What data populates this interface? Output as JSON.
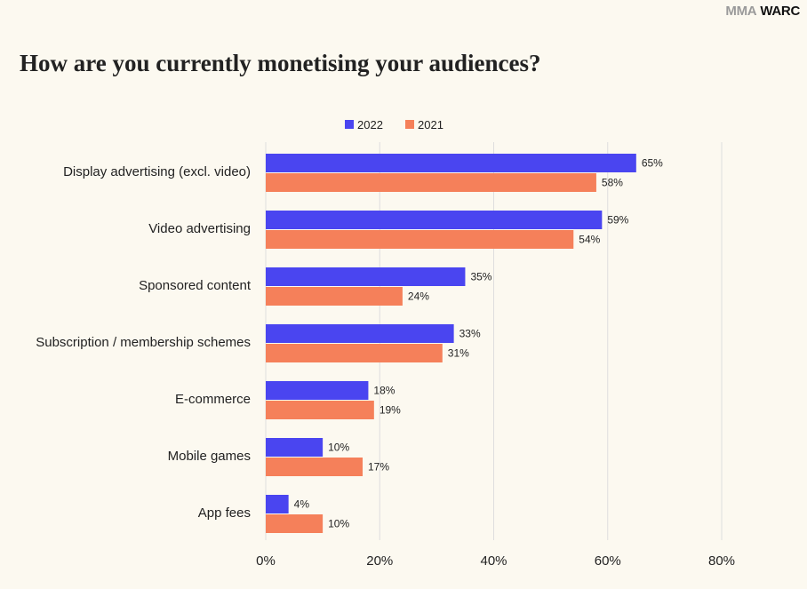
{
  "brand": {
    "logo_left": "MMA",
    "logo_right": "WARC"
  },
  "chart_data": {
    "type": "bar",
    "orientation": "horizontal",
    "title": "How are you currently monetising your audiences?",
    "categories": [
      "Display advertising (excl. video)",
      "Video advertising",
      "Sponsored content",
      "Subscription / membership schemes",
      "E-commerce",
      "Mobile games",
      "App fees"
    ],
    "series": [
      {
        "name": "2022",
        "color": "#4a45f0",
        "values": [
          65,
          59,
          35,
          33,
          18,
          10,
          4
        ]
      },
      {
        "name": "2021",
        "color": "#f5805a",
        "values": [
          58,
          54,
          24,
          31,
          19,
          17,
          10
        ]
      }
    ],
    "value_suffix": "%",
    "xlim": [
      0,
      80
    ],
    "xticks": [
      0,
      20,
      40,
      60,
      80
    ],
    "xtick_labels": [
      "0%",
      "20%",
      "40%",
      "60%",
      "80%"
    ],
    "grid": true,
    "legend_position": "top-center",
    "gridline_color": "#dedede"
  }
}
